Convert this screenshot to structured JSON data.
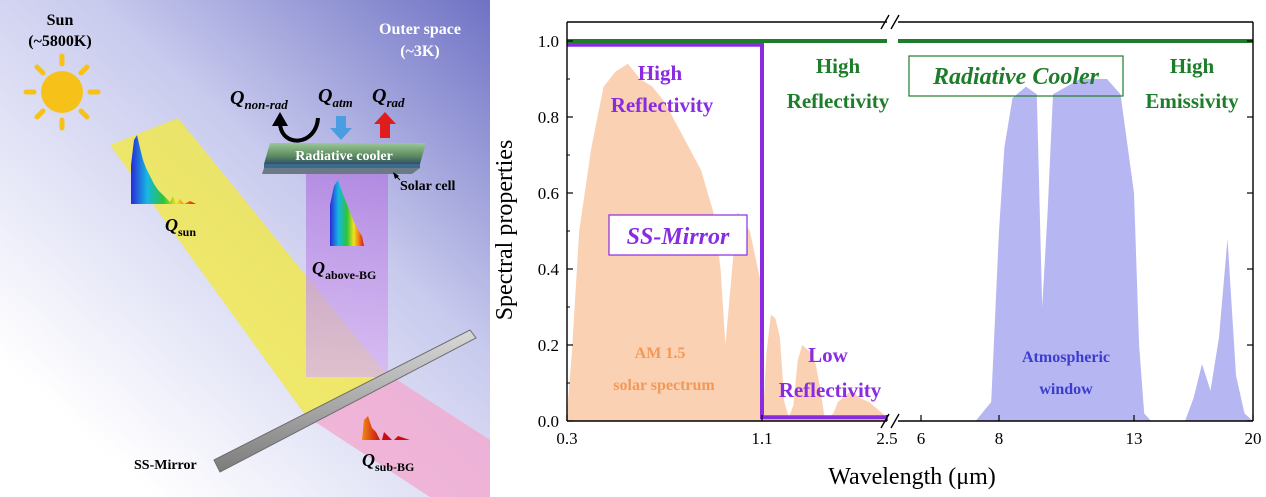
{
  "schematic": {
    "sun_label": "Sun",
    "sun_temp": "(~5800K)",
    "space_label": "Outer space",
    "space_temp": "(~3K)",
    "q_nonrad": "Q",
    "q_nonrad_sub": "non-rad",
    "q_atm": "Q",
    "q_atm_sub": "atm",
    "q_rad": "Q",
    "q_rad_sub": "rad",
    "cooler_label": "Radiative cooler",
    "solar_cell_label": "Solar cell",
    "q_sun": "Q",
    "q_sun_sub": "sun",
    "q_above": "Q",
    "q_above_sub": "above-BG",
    "q_sub": "Q",
    "q_sub_sub": "sub-BG",
    "mirror_label": "SS-Mirror",
    "colors": {
      "sky_top": "#7b7fc9",
      "beam_yellow": "#f3ea3c",
      "beam_purple": "#c79be8",
      "beam_pink": "#f2a9cf",
      "sun": "#f6c21a",
      "arrow_atm": "#4a9de0",
      "arrow_rad": "#e01d1d"
    }
  },
  "chart_data": {
    "type": "area",
    "x_axis": {
      "label": "Wavelength (μm)",
      "segment1_ticks": [
        "0.3",
        "1.1",
        "2.5"
      ],
      "segment2_ticks": [
        "6",
        "8",
        "13",
        "20"
      ],
      "segment1_range": [
        0.3,
        2.5
      ],
      "segment2_range": [
        5.0,
        20.0
      ]
    },
    "y_axis": {
      "label": "Spectral properties",
      "ticks": [
        "0.0",
        "0.2",
        "0.4",
        "0.6",
        "0.8",
        "1.0"
      ],
      "range": [
        0,
        1.05
      ]
    },
    "series": [
      {
        "name": "SS-Mirror",
        "color": "#8a2be2",
        "x": [
          0.3,
          1.1,
          1.1,
          2.5
        ],
        "y": [
          0.99,
          0.99,
          0.01,
          0.01
        ]
      },
      {
        "name": "Radiative Cooler",
        "color": "#1e7d2a",
        "x": [
          0.3,
          2.5,
          5.0,
          20.0
        ],
        "y": [
          1.0,
          1.0,
          1.0,
          1.0
        ]
      }
    ],
    "fills": [
      {
        "name": "AM 1.5 solar spectrum",
        "color": "#f9c9a5",
        "x": [
          0.3,
          0.32,
          0.35,
          0.4,
          0.45,
          0.5,
          0.55,
          0.6,
          0.65,
          0.7,
          0.75,
          0.8,
          0.85,
          0.9,
          0.93,
          0.95,
          0.98,
          1.0,
          1.05,
          1.1,
          1.12,
          1.15,
          1.2,
          1.25,
          1.3,
          1.35,
          1.4,
          1.45,
          1.5,
          1.55,
          1.6,
          1.65,
          1.7,
          1.75,
          1.8,
          1.85,
          1.9,
          1.95,
          2.0,
          2.05,
          2.1,
          2.2,
          2.3,
          2.4,
          2.5
        ],
        "y": [
          0.02,
          0.18,
          0.5,
          0.72,
          0.88,
          0.92,
          0.94,
          0.9,
          0.88,
          0.84,
          0.78,
          0.72,
          0.66,
          0.55,
          0.4,
          0.2,
          0.42,
          0.55,
          0.5,
          0.35,
          0.05,
          0.18,
          0.28,
          0.27,
          0.22,
          0.05,
          0.01,
          0.04,
          0.16,
          0.2,
          0.19,
          0.18,
          0.15,
          0.09,
          0.01,
          0.01,
          0.02,
          0.05,
          0.06,
          0.07,
          0.08,
          0.06,
          0.05,
          0.03,
          0.01
        ]
      },
      {
        "name": "Atmospheric window",
        "color": "#a9a9f0",
        "x": [
          7.4,
          7.8,
          8.0,
          8.2,
          8.5,
          9.0,
          9.4,
          9.6,
          9.8,
          10.0,
          10.5,
          11.0,
          11.5,
          12.0,
          12.5,
          13.0,
          13.3,
          13.6,
          14.0,
          15.0,
          16.0,
          16.5,
          17.0,
          17.5,
          18.0,
          18.5,
          19.0,
          19.5,
          20.0
        ],
        "y": [
          0.0,
          0.05,
          0.5,
          0.72,
          0.85,
          0.88,
          0.86,
          0.3,
          0.55,
          0.86,
          0.88,
          0.9,
          0.9,
          0.9,
          0.86,
          0.6,
          0.2,
          0.02,
          0.0,
          0.0,
          0.0,
          0.06,
          0.15,
          0.08,
          0.22,
          0.48,
          0.12,
          0.02,
          0.0
        ]
      }
    ],
    "annotations": {
      "ss_high_refl_1": "High",
      "ss_high_refl_2": "Reflectivity",
      "rc_high_refl_1": "High",
      "rc_high_refl_2": "Reflectivity",
      "rc_title": "Radiative Cooler",
      "rc_high_em_1": "High",
      "rc_high_em_2": "Emissivity",
      "ss_title": "SS-Mirror",
      "am_1": "AM 1.5",
      "am_2": "solar spectrum",
      "low_refl_1": "Low",
      "low_refl_2": "Reflectivity",
      "atm_1": "Atmospheric",
      "atm_2": "window"
    }
  }
}
